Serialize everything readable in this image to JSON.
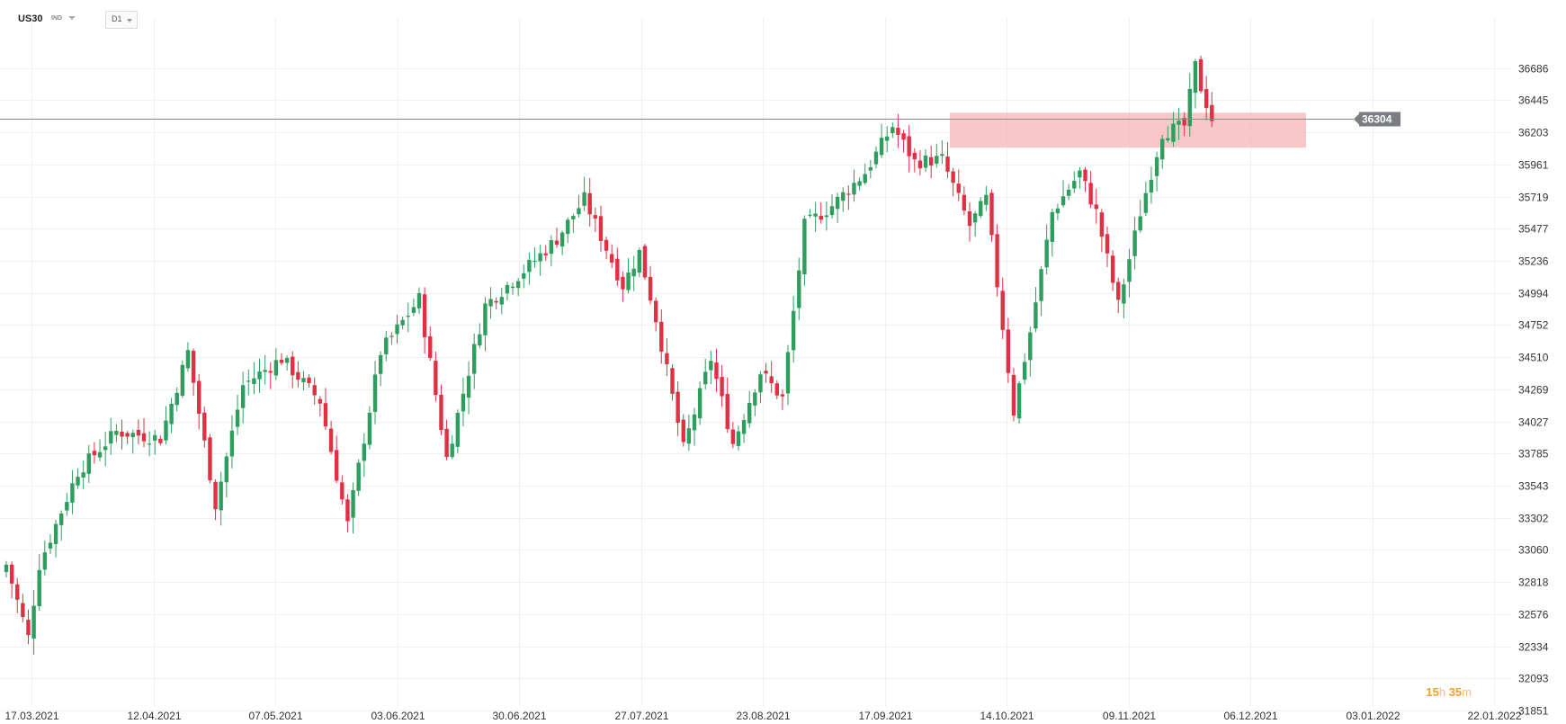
{
  "header": {
    "symbol": "US30",
    "market": "IND",
    "timeframe": "D1"
  },
  "countdown": {
    "hours": "15",
    "hours_unit": "h",
    "minutes": "35",
    "minutes_unit": "m"
  },
  "current_price_label": "36304",
  "colors": {
    "up": "#2e9e5e",
    "down": "#e03044",
    "zone": "#f7b4b4",
    "price_line": "#8a8a8a",
    "price_badge": "#7a7d82",
    "countdown": "#f0a030"
  },
  "chart_data": {
    "type": "candlestick",
    "instrument": "US30",
    "interval": "D1",
    "ylim": [
      31851,
      36928
    ],
    "y_ticks": [
      31851,
      32093,
      32334,
      32576,
      32818,
      33060,
      33302,
      33543,
      33785,
      34027,
      34269,
      34510,
      34752,
      34994,
      35236,
      35477,
      35719,
      35961,
      36203,
      36445,
      36686
    ],
    "x_ticks": [
      "17.03.2021",
      "12.04.2021",
      "07.05.2021",
      "03.06.2021",
      "30.06.2021",
      "27.07.2021",
      "23.08.2021",
      "17.09.2021",
      "14.10.2021",
      "09.11.2021",
      "06.12.2021",
      "03.01.2022",
      "22.01.2022"
    ],
    "current_price": 36304,
    "resistance_zone": [
      36087,
      36350
    ],
    "trend": [
      [
        0,
        32950
      ],
      [
        4,
        32400
      ],
      [
        6,
        32950
      ],
      [
        13,
        33650
      ],
      [
        20,
        33950
      ],
      [
        28,
        33900
      ],
      [
        33,
        34550
      ],
      [
        38,
        33400
      ],
      [
        43,
        34300
      ],
      [
        50,
        34500
      ],
      [
        57,
        34180
      ],
      [
        62,
        33250
      ],
      [
        68,
        34550
      ],
      [
        75,
        34950
      ],
      [
        80,
        33750
      ],
      [
        87,
        34900
      ],
      [
        95,
        35200
      ],
      [
        100,
        35400
      ],
      [
        105,
        35700
      ],
      [
        112,
        35050
      ],
      [
        115,
        35300
      ],
      [
        118,
        34800
      ],
      [
        123,
        33820
      ],
      [
        128,
        34500
      ],
      [
        132,
        33860
      ],
      [
        137,
        34400
      ],
      [
        141,
        34200
      ],
      [
        145,
        35500
      ],
      [
        150,
        35650
      ],
      [
        156,
        35900
      ],
      [
        161,
        36250
      ],
      [
        165,
        35980
      ],
      [
        170,
        36000
      ],
      [
        175,
        35500
      ],
      [
        178,
        35700
      ],
      [
        183,
        34100
      ],
      [
        186,
        34700
      ],
      [
        190,
        35600
      ],
      [
        195,
        35900
      ],
      [
        198,
        35600
      ],
      [
        202,
        34900
      ],
      [
        206,
        35600
      ],
      [
        210,
        36200
      ],
      [
        214,
        36250
      ],
      [
        216,
        36700
      ],
      [
        217,
        36540
      ],
      [
        219,
        36304
      ]
    ]
  }
}
